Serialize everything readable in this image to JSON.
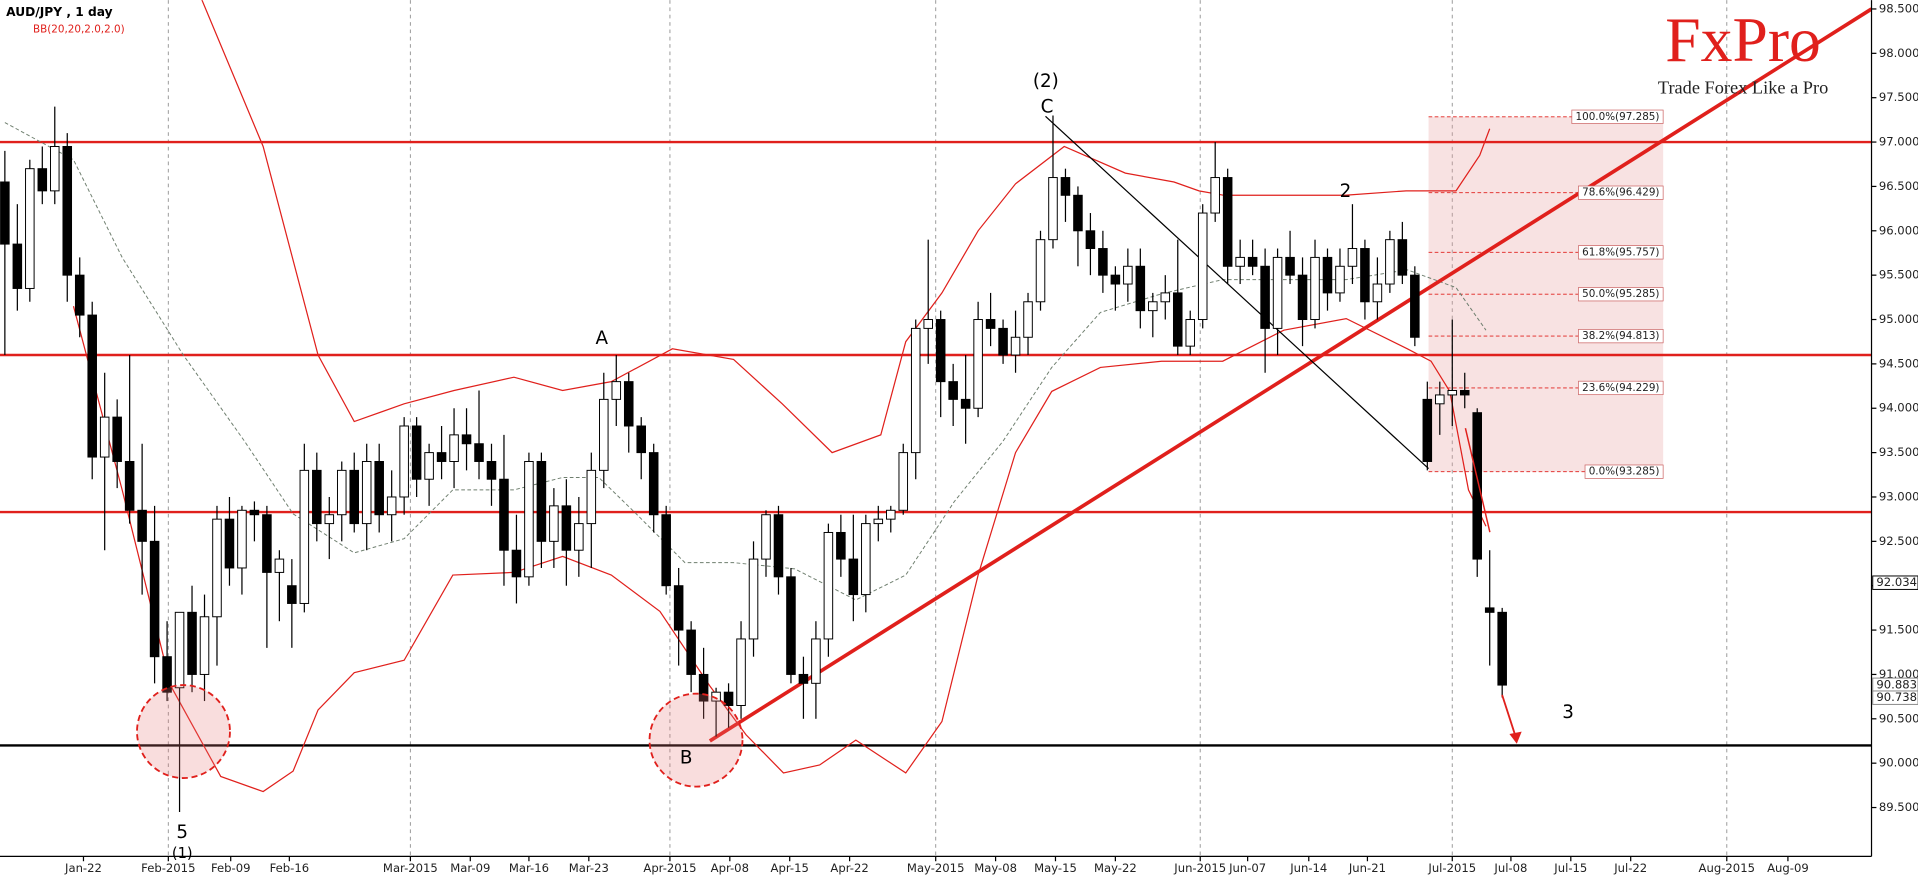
{
  "chart_data": {
    "type": "candlestick",
    "title": "AUD/JPY , 1 day",
    "subtitle": "BB(20,20,2.0,2.0)",
    "xlim": [
      -0.39,
      149.6
    ],
    "ylim": [
      88.95,
      98.6
    ],
    "xticks": [
      {
        "value": 6.3,
        "label": "Jan-22"
      },
      {
        "value": 13.1,
        "label": "Feb-2015"
      },
      {
        "value": 18.1,
        "label": "Feb-09"
      },
      {
        "value": 22.8,
        "label": "Feb-16"
      },
      {
        "value": 32.5,
        "label": "Mar-2015"
      },
      {
        "value": 37.3,
        "label": "Mar-09"
      },
      {
        "value": 42.0,
        "label": "Mar-16"
      },
      {
        "value": 46.8,
        "label": "Mar-23"
      },
      {
        "value": 53.3,
        "label": "Apr-2015"
      },
      {
        "value": 58.1,
        "label": "Apr-08"
      },
      {
        "value": 62.9,
        "label": "Apr-15"
      },
      {
        "value": 67.7,
        "label": "Apr-22"
      },
      {
        "value": 74.6,
        "label": "May-2015"
      },
      {
        "value": 79.4,
        "label": "May-08"
      },
      {
        "value": 84.2,
        "label": "May-15"
      },
      {
        "value": 89.0,
        "label": "May-22"
      },
      {
        "value": 95.8,
        "label": "Jun-2015"
      },
      {
        "value": 99.6,
        "label": "Jun-07"
      },
      {
        "value": 104.5,
        "label": "Jun-14"
      },
      {
        "value": 109.2,
        "label": "Jun-21"
      },
      {
        "value": 116.0,
        "label": "Jul-2015"
      },
      {
        "value": 120.7,
        "label": "Jul-08"
      },
      {
        "value": 125.5,
        "label": "Jul-15"
      },
      {
        "value": 130.3,
        "label": "Jul-22"
      },
      {
        "value": 138.0,
        "label": "Aug-2015"
      },
      {
        "value": 142.9,
        "label": "Aug-09"
      }
    ],
    "yticks": [
      {
        "value": 89.5,
        "label": "89.500"
      },
      {
        "value": 90.0,
        "label": "90.000"
      },
      {
        "value": 90.5,
        "label": "90.500"
      },
      {
        "value": 91.0,
        "label": "91.000"
      },
      {
        "value": 91.5,
        "label": "91.500"
      },
      {
        "value": 92.0,
        "label": "92.000"
      },
      {
        "value": 92.5,
        "label": "92.500"
      },
      {
        "value": 93.0,
        "label": "93.000"
      },
      {
        "value": 93.5,
        "label": "93.500"
      },
      {
        "value": 94.0,
        "label": "94.000"
      },
      {
        "value": 94.5,
        "label": "94.500"
      },
      {
        "value": 95.0,
        "label": "95.000"
      },
      {
        "value": 95.5,
        "label": "95.500"
      },
      {
        "value": 96.0,
        "label": "96.000"
      },
      {
        "value": 96.5,
        "label": "96.500"
      },
      {
        "value": 97.0,
        "label": "97.000"
      },
      {
        "value": 97.5,
        "label": "97.500"
      },
      {
        "value": 98.0,
        "label": "98.000"
      },
      {
        "value": 98.5,
        "label": "98.500"
      }
    ],
    "candles": [
      [
        96.55,
        96.9,
        94.6,
        95.85
      ],
      [
        95.85,
        96.3,
        95.1,
        95.35
      ],
      [
        95.35,
        96.8,
        95.2,
        96.7
      ],
      [
        96.7,
        96.95,
        96.3,
        96.45
      ],
      [
        96.45,
        97.4,
        96.3,
        96.95
      ],
      [
        96.95,
        97.1,
        95.2,
        95.5
      ],
      [
        95.5,
        95.7,
        94.8,
        95.05
      ],
      [
        95.05,
        95.2,
        93.2,
        93.45
      ],
      [
        93.45,
        94.4,
        92.4,
        93.9
      ],
      [
        93.9,
        94.1,
        93.1,
        93.4
      ],
      [
        93.4,
        94.6,
        92.7,
        92.85
      ],
      [
        92.85,
        93.6,
        91.9,
        92.5
      ],
      [
        92.5,
        92.9,
        90.9,
        91.2
      ],
      [
        91.2,
        91.6,
        90.7,
        90.8
      ],
      [
        90.85,
        91.7,
        89.45,
        91.7
      ],
      [
        91.7,
        92.0,
        90.8,
        91.0
      ],
      [
        91.0,
        91.9,
        90.7,
        91.65
      ],
      [
        91.65,
        92.9,
        91.1,
        92.75
      ],
      [
        92.75,
        93.0,
        92.0,
        92.2
      ],
      [
        92.2,
        92.9,
        91.9,
        92.85
      ],
      [
        92.85,
        92.95,
        92.5,
        92.8
      ],
      [
        92.8,
        92.9,
        91.3,
        92.15
      ],
      [
        92.15,
        92.4,
        91.6,
        92.3
      ],
      [
        92.0,
        92.3,
        91.3,
        91.8
      ],
      [
        91.8,
        93.6,
        91.7,
        93.3
      ],
      [
        93.3,
        93.5,
        92.5,
        92.7
      ],
      [
        92.7,
        93.0,
        92.3,
        92.8
      ],
      [
        92.8,
        93.4,
        92.5,
        93.3
      ],
      [
        93.3,
        93.5,
        92.6,
        92.7
      ],
      [
        92.7,
        93.6,
        92.4,
        93.4
      ],
      [
        93.4,
        93.6,
        92.6,
        92.8
      ],
      [
        92.8,
        93.3,
        92.5,
        93.0
      ],
      [
        93.0,
        93.9,
        92.8,
        93.8
      ],
      [
        93.8,
        93.9,
        93.0,
        93.2
      ],
      [
        93.2,
        93.6,
        92.9,
        93.5
      ],
      [
        93.5,
        93.8,
        93.2,
        93.4
      ],
      [
        93.4,
        94.0,
        93.1,
        93.7
      ],
      [
        93.7,
        94.0,
        93.3,
        93.6
      ],
      [
        93.6,
        94.2,
        93.2,
        93.4
      ],
      [
        93.4,
        93.6,
        92.9,
        93.2
      ],
      [
        93.2,
        93.7,
        92.0,
        92.4
      ],
      [
        92.4,
        92.8,
        91.8,
        92.1
      ],
      [
        92.1,
        93.5,
        92.0,
        93.4
      ],
      [
        93.4,
        93.5,
        92.2,
        92.5
      ],
      [
        92.5,
        93.1,
        92.2,
        92.9
      ],
      [
        92.9,
        93.2,
        92.0,
        92.4
      ],
      [
        92.4,
        93.0,
        92.1,
        92.7
      ],
      [
        92.7,
        93.5,
        92.2,
        93.3
      ],
      [
        93.3,
        94.4,
        93.1,
        94.1
      ],
      [
        94.1,
        94.6,
        93.8,
        94.3
      ],
      [
        94.3,
        94.4,
        93.5,
        93.8
      ],
      [
        93.8,
        93.9,
        93.2,
        93.5
      ],
      [
        93.5,
        93.6,
        92.6,
        92.8
      ],
      [
        92.8,
        92.9,
        91.9,
        92.0
      ],
      [
        92.0,
        92.2,
        91.1,
        91.5
      ],
      [
        91.5,
        91.6,
        90.8,
        91.0
      ],
      [
        91.0,
        91.3,
        90.5,
        90.7
      ],
      [
        90.7,
        90.85,
        90.3,
        90.8
      ],
      [
        90.8,
        90.9,
        90.4,
        90.65
      ],
      [
        90.65,
        91.6,
        90.5,
        91.4
      ],
      [
        91.4,
        92.5,
        91.2,
        92.3
      ],
      [
        92.3,
        92.85,
        92.1,
        92.8
      ],
      [
        92.8,
        92.9,
        91.9,
        92.1
      ],
      [
        92.1,
        92.2,
        90.9,
        91.0
      ],
      [
        91.0,
        91.2,
        90.5,
        90.9
      ],
      [
        90.9,
        91.6,
        90.5,
        91.4
      ],
      [
        91.4,
        92.7,
        91.2,
        92.6
      ],
      [
        92.6,
        92.8,
        92.1,
        92.3
      ],
      [
        92.3,
        92.8,
        91.6,
        91.9
      ],
      [
        91.9,
        92.8,
        91.7,
        92.7
      ],
      [
        92.7,
        92.9,
        92.5,
        92.75
      ],
      [
        92.75,
        92.9,
        92.6,
        92.85
      ],
      [
        92.85,
        93.6,
        92.8,
        93.5
      ],
      [
        93.5,
        95.0,
        93.2,
        94.9
      ],
      [
        94.9,
        95.9,
        94.5,
        95.0
      ],
      [
        95.0,
        95.1,
        93.9,
        94.3
      ],
      [
        94.3,
        94.5,
        93.8,
        94.1
      ],
      [
        94.1,
        94.6,
        93.6,
        94.0
      ],
      [
        94.0,
        95.2,
        93.9,
        95.0
      ],
      [
        95.0,
        95.3,
        94.7,
        94.9
      ],
      [
        94.9,
        95.0,
        94.5,
        94.6
      ],
      [
        94.6,
        95.1,
        94.4,
        94.8
      ],
      [
        94.8,
        95.3,
        94.6,
        95.2
      ],
      [
        95.2,
        96.0,
        95.1,
        95.9
      ],
      [
        95.9,
        97.3,
        95.8,
        96.6
      ],
      [
        96.6,
        96.7,
        96.1,
        96.4
      ],
      [
        96.4,
        96.5,
        95.6,
        96.0
      ],
      [
        96.0,
        96.2,
        95.5,
        95.8
      ],
      [
        95.8,
        96.0,
        95.3,
        95.5
      ],
      [
        95.5,
        95.6,
        95.1,
        95.4
      ],
      [
        95.4,
        95.8,
        95.2,
        95.6
      ],
      [
        95.6,
        95.8,
        94.9,
        95.1
      ],
      [
        95.1,
        95.3,
        94.8,
        95.2
      ],
      [
        95.2,
        95.5,
        95.0,
        95.3
      ],
      [
        95.3,
        95.9,
        94.6,
        94.7
      ],
      [
        94.7,
        95.1,
        94.6,
        95.0
      ],
      [
        95.0,
        96.3,
        94.9,
        96.2
      ],
      [
        96.2,
        97.0,
        96.1,
        96.6
      ],
      [
        96.6,
        96.7,
        95.4,
        95.6
      ],
      [
        95.6,
        95.9,
        95.4,
        95.7
      ],
      [
        95.7,
        95.9,
        95.5,
        95.6
      ],
      [
        95.6,
        95.8,
        94.4,
        94.9
      ],
      [
        94.9,
        95.8,
        94.6,
        95.7
      ],
      [
        95.7,
        96.0,
        95.4,
        95.5
      ],
      [
        95.5,
        95.7,
        94.7,
        95.0
      ],
      [
        95.0,
        95.9,
        94.9,
        95.7
      ],
      [
        95.7,
        95.8,
        95.1,
        95.3
      ],
      [
        95.3,
        95.8,
        95.2,
        95.6
      ],
      [
        95.6,
        96.3,
        95.4,
        95.8
      ],
      [
        95.8,
        95.9,
        95.0,
        95.2
      ],
      [
        95.2,
        95.7,
        95.0,
        95.4
      ],
      [
        95.4,
        96.0,
        95.3,
        95.9
      ],
      [
        95.9,
        96.1,
        95.4,
        95.5
      ],
      [
        95.5,
        95.6,
        94.7,
        94.8
      ],
      [
        94.1,
        94.3,
        93.3,
        93.4
      ],
      [
        94.05,
        94.3,
        93.7,
        94.15
      ],
      [
        94.15,
        95.0,
        93.8,
        94.2
      ],
      [
        94.2,
        94.4,
        94.0,
        94.15
      ],
      [
        93.95,
        94.0,
        92.1,
        92.3
      ],
      [
        91.75,
        92.4,
        91.1,
        91.7
      ],
      [
        91.7,
        91.75,
        90.74,
        90.88
      ]
    ],
    "bands": [
      {
        "color": "#e0201c",
        "style": "solid",
        "x": [
          15.5,
          20.7,
          25.1,
          28,
          32,
          36,
          40.8,
          44.7,
          48.6,
          53.5,
          58.4,
          62.3,
          66.3,
          70.2,
          72.2,
          75.1,
          78,
          81,
          84.9,
          89.8,
          93.7,
          95.7,
          97.7,
          102.6,
          107.4,
          112.3,
          116.3,
          118.2,
          119
        ],
        "values": [
          98.7,
          96.95,
          94.6,
          93.85,
          94.05,
          94.2,
          94.35,
          94.2,
          94.3,
          94.67,
          94.55,
          94.05,
          93.5,
          93.7,
          94.75,
          95.3,
          96.0,
          96.53,
          96.95,
          96.65,
          96.55,
          96.45,
          96.4,
          96.4,
          96.4,
          96.45,
          96.45,
          96.85,
          97.15
        ]
      },
      {
        "color": "#6f7f6f",
        "style": "dashed",
        "x": [
          0,
          5.5,
          9.4,
          14.3,
          19.2,
          23.1,
          28,
          32,
          35.9,
          40.8,
          44.7,
          47.6,
          50.6,
          54.5,
          58.4,
          63.3,
          68.2,
          72.2,
          76.1,
          80,
          83.9,
          87.8,
          92.7,
          97.6,
          102.5,
          107.5,
          112.4,
          116.3,
          118.7
        ],
        "values": [
          97.22,
          96.8,
          95.7,
          94.6,
          93.63,
          92.81,
          92.37,
          92.53,
          93.08,
          93.08,
          93.22,
          93.22,
          92.81,
          92.26,
          92.26,
          92.19,
          91.84,
          92.12,
          92.95,
          93.63,
          94.46,
          95.08,
          95.29,
          95.45,
          95.45,
          95.45,
          95.56,
          95.36,
          94.88
        ]
      },
      {
        "color": "#e0201c",
        "style": "solid",
        "x": [
          5.5,
          9.4,
          13.3,
          17.3,
          20.7,
          23.1,
          25.1,
          28,
          32,
          35.9,
          40.8,
          44.7,
          48.6,
          52.5,
          56.5,
          59.4,
          62.4,
          65.3,
          68.2,
          72.2,
          75.1,
          78,
          81,
          83.9,
          87.8,
          92.7,
          97.6,
          102.5,
          107.5,
          112.4,
          114.3,
          115.8,
          117.3,
          118.7
        ],
        "values": [
          95.15,
          93.08,
          90.87,
          89.85,
          89.68,
          89.91,
          90.6,
          91.02,
          91.16,
          92.12,
          92.15,
          92.33,
          92.12,
          91.71,
          90.87,
          90.32,
          89.89,
          89.98,
          90.26,
          89.89,
          90.47,
          92.12,
          93.5,
          94.19,
          94.46,
          94.53,
          94.53,
          94.88,
          95.01,
          94.67,
          94.53,
          94.19,
          93.08,
          92.67
        ]
      }
    ],
    "hlines": [
      {
        "value": 97.0,
        "color": "#e0201c"
      },
      {
        "value": 94.6,
        "color": "#e0201c"
      },
      {
        "value": 92.83,
        "color": "#e0201c"
      },
      {
        "value": 90.2,
        "color": "#000000"
      }
    ],
    "trendlines": [
      {
        "color": "#e0201c",
        "width": 3,
        "x": [
          56.5,
          149.6
        ],
        "values": [
          90.25,
          98.5
        ]
      },
      {
        "color": "#000000",
        "width": 1,
        "x": [
          83.4,
          114.1
        ],
        "values": [
          97.29,
          93.32
        ]
      }
    ],
    "fib": {
      "x": [
        114.1,
        132.9
      ],
      "color": "#e8a0a0",
      "levels": [
        {
          "value": 97.285,
          "label": "100.0%(97.285)"
        },
        {
          "value": 96.429,
          "label": "78.6%(96.429)"
        },
        {
          "value": 95.757,
          "label": "61.8%(95.757)"
        },
        {
          "value": 95.285,
          "label": "50.0%(95.285)"
        },
        {
          "value": 94.813,
          "label": "38.2%(94.813)"
        },
        {
          "value": 94.229,
          "label": "23.6%(94.229)"
        },
        {
          "value": 93.285,
          "label": "0.0%(93.285)"
        }
      ]
    },
    "price_tags": [
      92.034,
      90.883,
      90.738
    ],
    "annotations": [
      "(2)",
      "C",
      "A",
      "B",
      "2",
      "3",
      "5",
      "(1)"
    ]
  },
  "logo": {
    "name": "FxPro",
    "slogan": "Trade Forex Like a Pro"
  }
}
